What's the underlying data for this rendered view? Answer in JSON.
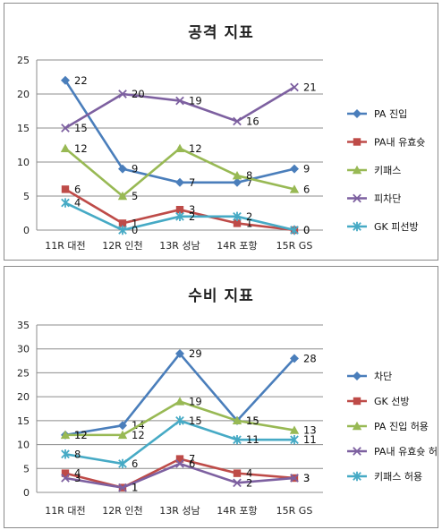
{
  "chart_data": [
    {
      "type": "line",
      "title": "공격 지표",
      "categories": [
        "11R 대전",
        "12R 인천",
        "13R 성남",
        "14R 포항",
        "15R GS"
      ],
      "ylim": [
        0,
        25
      ],
      "yticks": [
        0,
        5,
        10,
        15,
        20,
        25
      ],
      "grid": true,
      "legend": "right",
      "series": [
        {
          "name": "PA 진입",
          "values": [
            22,
            9,
            7,
            7,
            9
          ],
          "color": "#4a7ebb",
          "marker": "diamond",
          "labels": [
            "22",
            "9",
            "7",
            "7",
            "9"
          ]
        },
        {
          "name": "PA내 유효슛",
          "values": [
            6,
            1,
            3,
            1,
            0
          ],
          "color": "#be4b48",
          "marker": "square",
          "labels": [
            "6",
            "1",
            "3",
            "1",
            "0"
          ]
        },
        {
          "name": "키패스",
          "values": [
            12,
            5,
            12,
            8,
            6
          ],
          "color": "#98b954",
          "marker": "triangle",
          "labels": [
            "12",
            "5",
            "12",
            "8",
            "6"
          ]
        },
        {
          "name": "피차단",
          "values": [
            15,
            20,
            19,
            16,
            21
          ],
          "color": "#7d60a0",
          "marker": "x",
          "labels": [
            "15",
            "20",
            "19",
            "16",
            "21"
          ]
        },
        {
          "name": "GK 피선방",
          "values": [
            4,
            0,
            2,
            2,
            0
          ],
          "color": "#46aac5",
          "marker": "star",
          "labels": [
            "4",
            "0",
            "2",
            "2",
            "0"
          ]
        }
      ]
    },
    {
      "type": "line",
      "title": "수비 지표",
      "categories": [
        "11R 대전",
        "12R 인천",
        "13R 성남",
        "14R 포항",
        "15R GS"
      ],
      "ylim": [
        0,
        35
      ],
      "yticks": [
        0,
        5,
        10,
        15,
        20,
        25,
        30,
        35
      ],
      "grid": true,
      "legend": "right",
      "series": [
        {
          "name": "차단",
          "values": [
            12,
            14,
            29,
            15,
            28
          ],
          "color": "#4a7ebb",
          "marker": "diamond",
          "labels": [
            "12",
            "14",
            "29",
            "15",
            "28"
          ]
        },
        {
          "name": "GK 선방",
          "values": [
            4,
            1,
            7,
            4,
            3
          ],
          "color": "#be4b48",
          "marker": "square",
          "labels": [
            "4",
            "1",
            "7",
            "4",
            "3"
          ]
        },
        {
          "name": "PA 진입 허용",
          "values": [
            12,
            12,
            19,
            15,
            13
          ],
          "color": "#98b954",
          "marker": "triangle",
          "labels": [
            "12",
            "12",
            "19",
            "15",
            "13"
          ]
        },
        {
          "name": "PA내 유효슛 허용",
          "values": [
            3,
            1,
            6,
            2,
            3
          ],
          "color": "#7d60a0",
          "marker": "x",
          "labels": [
            "3",
            "1",
            "6",
            "2",
            "3"
          ]
        },
        {
          "name": "키패스 허용",
          "values": [
            8,
            6,
            15,
            11,
            11
          ],
          "color": "#46aac5",
          "marker": "star",
          "labels": [
            "8",
            "6",
            "15",
            "11",
            "11"
          ]
        }
      ]
    }
  ]
}
